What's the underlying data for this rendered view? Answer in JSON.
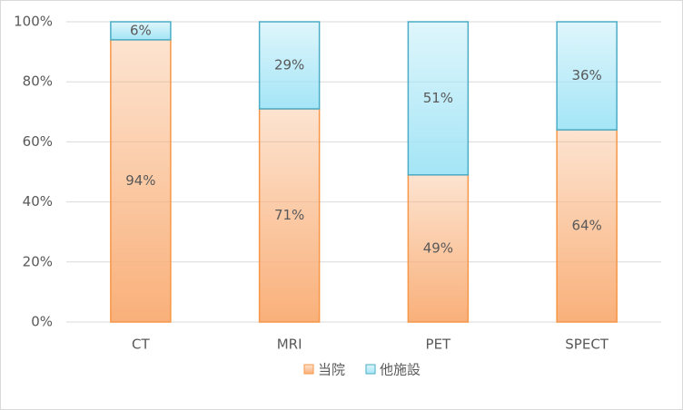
{
  "chart_data": {
    "type": "stacked_bar",
    "categories": [
      "CT",
      "MRI",
      "PET",
      "SPECT"
    ],
    "series": [
      {
        "name": "当院",
        "color": "#f9b07a",
        "edgecolor": "#f79646",
        "values": [
          94,
          71,
          49,
          64
        ],
        "value_labels": [
          "94%",
          "71%",
          "49%",
          "64%"
        ]
      },
      {
        "name": "他施設",
        "color": "#a4e5f6",
        "edgecolor": "#4bacc6",
        "values": [
          6,
          29,
          51,
          36
        ],
        "value_labels": [
          "6%",
          "29%",
          "51%",
          "36%"
        ]
      }
    ],
    "ylim": [
      0,
      100
    ],
    "yticks": [
      {
        "value": 0,
        "label": "0%"
      },
      {
        "value": 20,
        "label": "20%"
      },
      {
        "value": 40,
        "label": "40%"
      },
      {
        "value": 60,
        "label": "60%"
      },
      {
        "value": 80,
        "label": "80%"
      },
      {
        "value": 100,
        "label": "100%"
      }
    ],
    "grid": true,
    "legend": "bottom"
  }
}
